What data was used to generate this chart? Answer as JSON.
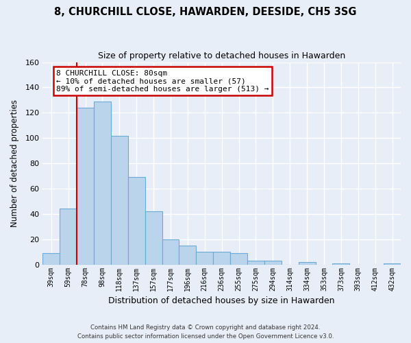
{
  "title": "8, CHURCHILL CLOSE, HAWARDEN, DEESIDE, CH5 3SG",
  "subtitle": "Size of property relative to detached houses in Hawarden",
  "xlabel": "Distribution of detached houses by size in Hawarden",
  "ylabel": "Number of detached properties",
  "bar_labels": [
    "39sqm",
    "59sqm",
    "78sqm",
    "98sqm",
    "118sqm",
    "137sqm",
    "157sqm",
    "177sqm",
    "196sqm",
    "216sqm",
    "236sqm",
    "255sqm",
    "275sqm",
    "294sqm",
    "314sqm",
    "334sqm",
    "353sqm",
    "373sqm",
    "393sqm",
    "412sqm",
    "432sqm"
  ],
  "bar_values": [
    9,
    44,
    124,
    129,
    102,
    69,
    42,
    20,
    15,
    10,
    10,
    9,
    3,
    3,
    0,
    2,
    0,
    1,
    0,
    0,
    1
  ],
  "bar_color": "#bad4ec",
  "bar_edge_color": "#6aaad4",
  "vline_x_index": 2,
  "vline_color": "#cc0000",
  "ylim": [
    0,
    160
  ],
  "yticks": [
    0,
    20,
    40,
    60,
    80,
    100,
    120,
    140,
    160
  ],
  "annotation_title": "8 CHURCHILL CLOSE: 80sqm",
  "annotation_line1": "← 10% of detached houses are smaller (57)",
  "annotation_line2": "89% of semi-detached houses are larger (513) →",
  "annotation_box_facecolor": "#ffffff",
  "annotation_border_color": "#cc0000",
  "footer_line1": "Contains HM Land Registry data © Crown copyright and database right 2024.",
  "footer_line2": "Contains public sector information licensed under the Open Government Licence v3.0.",
  "bg_color": "#e8eef8",
  "plot_bg_color": "#e8eef8",
  "grid_color": "#ffffff"
}
